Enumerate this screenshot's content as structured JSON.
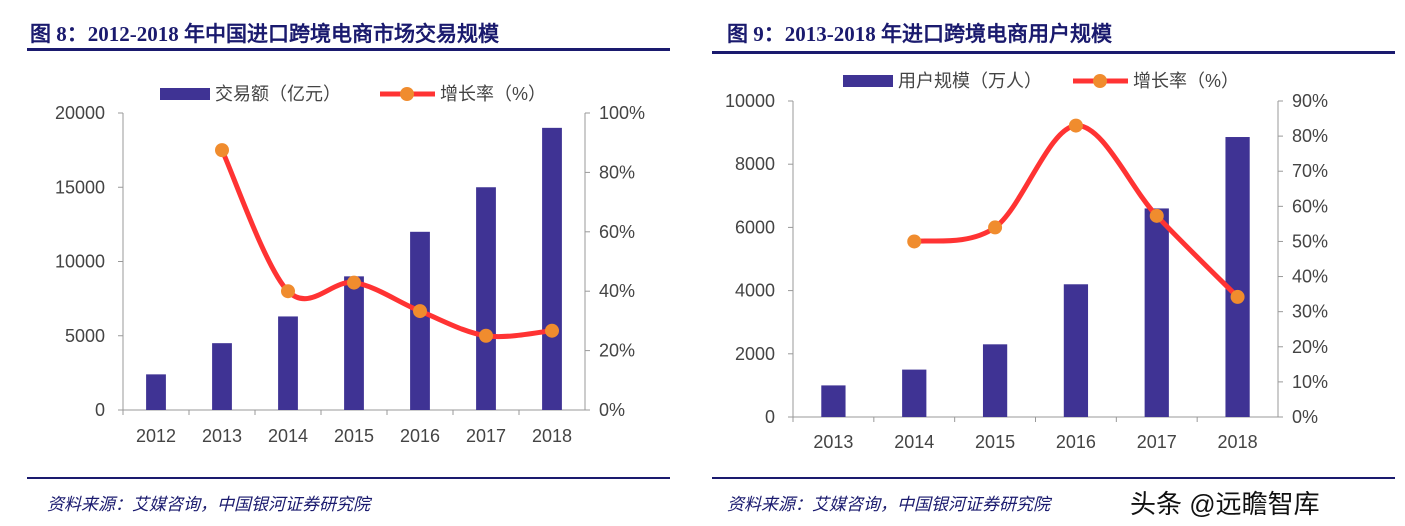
{
  "chart_data": [
    {
      "type": "bar+line",
      "title": "图 8：2012-2018 年中国进口跨境电商市场交易规模",
      "categories": [
        "2012",
        "2013",
        "2014",
        "2015",
        "2016",
        "2017",
        "2018"
      ],
      "series": [
        {
          "name": "交易额（亿元）",
          "type": "bar",
          "axis": "left",
          "color": "#3f3394",
          "values": [
            2400,
            4500,
            6300,
            9000,
            12000,
            15000,
            19000
          ]
        },
        {
          "name": "增长率（%）",
          "type": "line",
          "axis": "right",
          "color": "#ff3333",
          "marker_color": "#f08c2e",
          "values": [
            null,
            87.5,
            40,
            42.9,
            33.3,
            25,
            26.7
          ]
        }
      ],
      "left_axis": {
        "ylim": [
          0,
          20000
        ],
        "ticks": [
          "0",
          "5000",
          "10000",
          "15000",
          "20000"
        ]
      },
      "right_axis": {
        "ylim": [
          0,
          100
        ],
        "ticks": [
          "0%",
          "20%",
          "40%",
          "60%",
          "80%",
          "100%"
        ]
      },
      "legend": "top",
      "grid": false,
      "source": "资料来源：艾媒咨询，中国银河证券研究院"
    },
    {
      "type": "bar+line",
      "title": "图 9：2013-2018 年进口跨境电商用户规模",
      "categories": [
        "2013",
        "2014",
        "2015",
        "2016",
        "2017",
        "2018"
      ],
      "series": [
        {
          "name": "用户规模（万人）",
          "type": "bar",
          "axis": "left",
          "color": "#3f3394",
          "values": [
            1000,
            1500,
            2300,
            4200,
            6600,
            8860
          ]
        },
        {
          "name": "增长率（%）",
          "type": "line",
          "axis": "right",
          "color": "#ff3333",
          "marker_color": "#f08c2e",
          "values": [
            null,
            50,
            54,
            83,
            57.3,
            34.2
          ]
        }
      ],
      "left_axis": {
        "ylim": [
          0,
          10000
        ],
        "ticks": [
          "0",
          "2000",
          "4000",
          "6000",
          "8000",
          "10000"
        ]
      },
      "right_axis": {
        "ylim": [
          0,
          90
        ],
        "ticks": [
          "0%",
          "10%",
          "20%",
          "30%",
          "40%",
          "50%",
          "60%",
          "70%",
          "80%",
          "90%"
        ]
      },
      "legend": "top",
      "grid": false,
      "source": "资料来源：艾媒咨询，中国银河证券研究院"
    }
  ],
  "watermark": "头条 @远瞻智库"
}
